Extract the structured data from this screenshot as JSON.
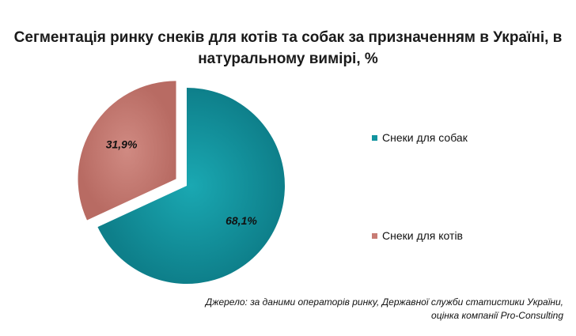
{
  "chart_data": {
    "type": "pie",
    "title": "Сегментація ринку снеків для котів та собак за призначенням в Україні, в натуральному вимірі, %",
    "slices": [
      {
        "label": "Снеки для собак",
        "value": 68.1,
        "display": "68,1%",
        "color": "#12949f"
      },
      {
        "label": "Снеки для котів",
        "value": 31.9,
        "display": "31,9%",
        "color": "#c87c74"
      }
    ],
    "legend_position": "right"
  },
  "source": {
    "line1": "Джерело: за даними операторів ринку, Державної служби статистики України,",
    "line2": "оцінка компанії Pro-Consulting"
  }
}
